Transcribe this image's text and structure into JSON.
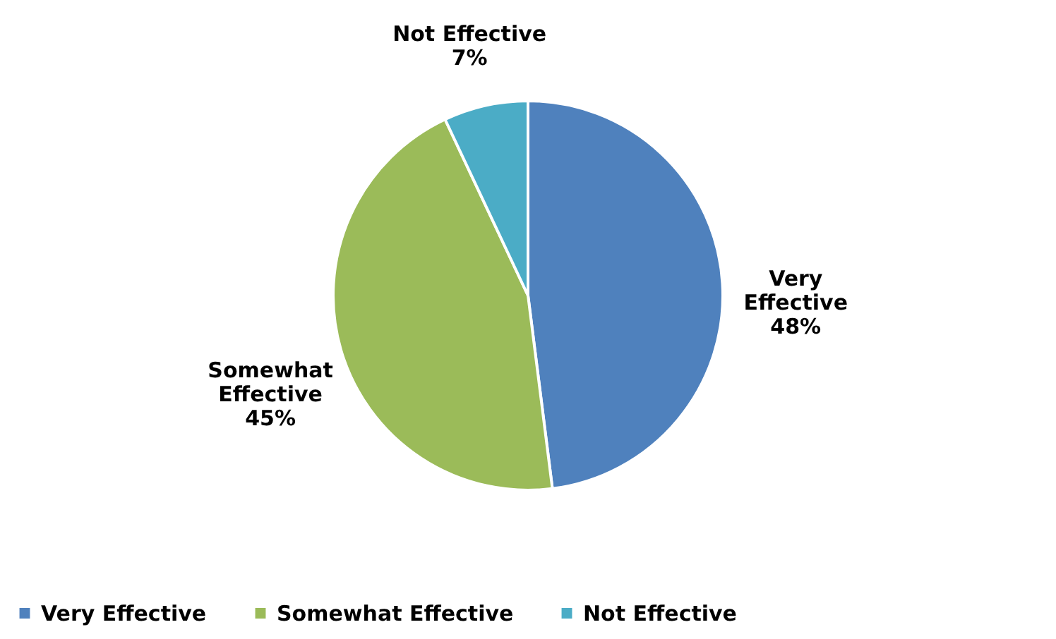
{
  "chart_data": {
    "type": "pie",
    "categories": [
      "Very Effective",
      "Somewhat Effective",
      "Not Effective"
    ],
    "values": [
      48,
      45,
      7
    ],
    "colors": [
      "#4f81bd",
      "#9bbb59",
      "#4bacc6"
    ],
    "value_labels": [
      "48%",
      "45%",
      "7%"
    ],
    "legend": "bottom"
  }
}
